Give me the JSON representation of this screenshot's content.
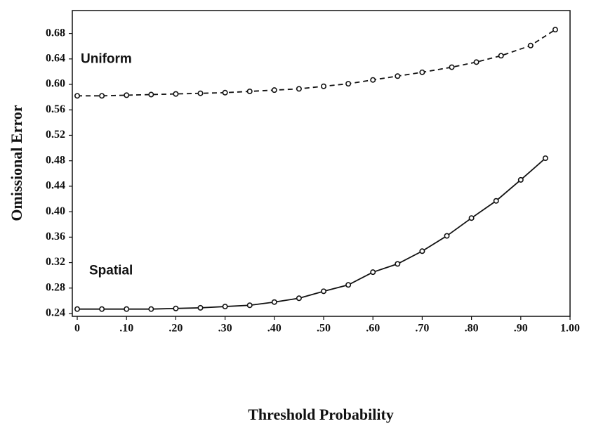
{
  "chart_data": {
    "type": "line",
    "x_label": "Threshold Probability",
    "y_label": "Omissional Error",
    "xlim": [
      -0.01,
      1.0
    ],
    "ylim": [
      0.2356,
      0.716
    ],
    "xticks": [
      0,
      {
        "value": 0.1,
        "label": ".10"
      },
      {
        "value": 0.2,
        "label": ".20"
      },
      {
        "value": 0.3,
        "label": ".30"
      },
      {
        "value": 0.4,
        "label": ".40"
      },
      {
        "value": 0.5,
        "label": ".50"
      },
      {
        "value": 0.6,
        "label": ".60"
      },
      {
        "value": 0.7,
        "label": ".70"
      },
      {
        "value": 0.8,
        "label": ".80"
      },
      {
        "value": 0.9,
        "label": ".90"
      },
      {
        "value": 1.0,
        "label": "1.00"
      }
    ],
    "yticks": [
      0.24,
      0.28,
      0.32,
      0.36,
      {
        "value": 0.4,
        "label": "0.40"
      },
      0.44,
      0.48,
      0.52,
      0.56,
      {
        "value": 0.6,
        "label": "0.60"
      },
      0.64,
      0.68
    ],
    "series": [
      {
        "name": "Uniform",
        "color": "#111111",
        "line_style": "dashed",
        "x": [
          0,
          0.05,
          0.1,
          0.15,
          0.2,
          0.25,
          0.3,
          0.35,
          0.4,
          0.45,
          0.5,
          0.55,
          0.6,
          0.65,
          0.7,
          0.76,
          0.81,
          0.86,
          0.92,
          0.97
        ],
        "values": [
          0.582,
          0.582,
          0.583,
          0.584,
          0.585,
          0.586,
          0.587,
          0.589,
          0.591,
          0.593,
          0.597,
          0.601,
          0.607,
          0.613,
          0.619,
          0.627,
          0.635,
          0.645,
          0.661,
          0.686
        ]
      },
      {
        "name": "Spatial",
        "color": "#111111",
        "line_style": "solid",
        "x": [
          0,
          0.05,
          0.1,
          0.15,
          0.2,
          0.25,
          0.3,
          0.35,
          0.4,
          0.45,
          0.5,
          0.55,
          0.6,
          0.65,
          0.7,
          0.75,
          0.8,
          0.85,
          0.9,
          0.95
        ],
        "values": [
          0.247,
          0.247,
          0.247,
          0.247,
          0.248,
          0.249,
          0.251,
          0.253,
          0.258,
          0.264,
          0.275,
          0.285,
          0.305,
          0.318,
          0.338,
          0.362,
          0.39,
          0.417,
          0.45,
          0.484
        ]
      }
    ]
  }
}
